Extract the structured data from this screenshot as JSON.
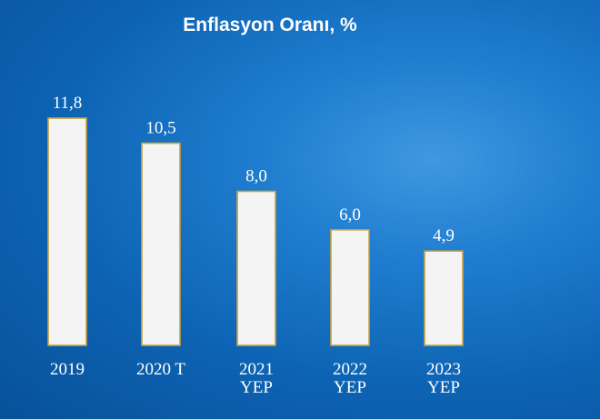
{
  "chart_data": {
    "type": "bar",
    "title": "Enflasyon Oranı, %",
    "categories": [
      [
        "2019"
      ],
      [
        "2020 T"
      ],
      [
        "2021",
        "YEP"
      ],
      [
        "2022",
        "YEP"
      ],
      [
        "2023",
        "YEP"
      ]
    ],
    "values": [
      11.8,
      10.5,
      8.0,
      6.0,
      4.9
    ],
    "value_labels": [
      "11,8",
      "10,5",
      "8,0",
      "6,0",
      "4,9"
    ],
    "ylim": [
      0,
      12.5
    ],
    "grid": false,
    "colors": {
      "bar_fill": "#f4f4f4",
      "bar_edge": "#c9a23e",
      "text": "#ffffff",
      "background": "#1470c2"
    }
  }
}
